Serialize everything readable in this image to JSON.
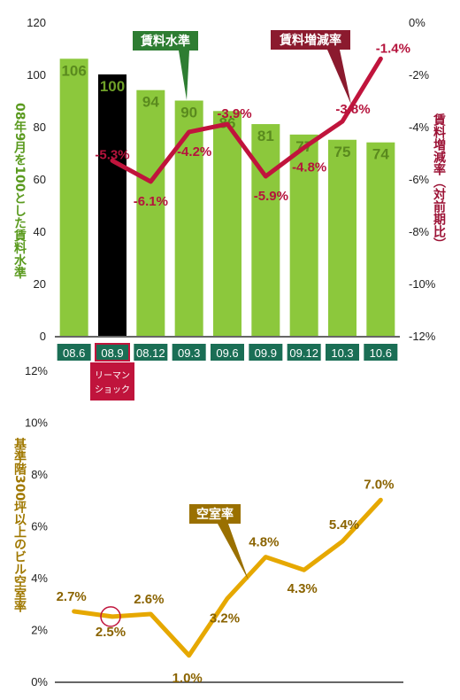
{
  "chart_data": [
    {
      "type": "bar+line",
      "categories": [
        "08.6",
        "08.9",
        "08.12",
        "09.3",
        "09.6",
        "09.9",
        "09.12",
        "10.3",
        "10.6"
      ],
      "series": [
        {
          "name": "賃料水準",
          "type": "bar",
          "axis": "left",
          "values": [
            106,
            100,
            94,
            90,
            86,
            81,
            77,
            75,
            74
          ]
        },
        {
          "name": "賃料増減率",
          "type": "line",
          "axis": "right",
          "values": [
            null,
            -5.3,
            -6.1,
            -4.2,
            -3.9,
            -5.9,
            -4.8,
            -3.8,
            -1.4
          ],
          "labels": [
            "",
            "-5.3%",
            "-6.1%",
            "-4.2%",
            "-3.9%",
            "-5.9%",
            "-4.8%",
            "-3.8%",
            "-1.4%"
          ]
        }
      ],
      "ylabel_left": "08年9月を100とした賃料水準",
      "ylabel_right": "賃料増減率（対前期比）",
      "ylim_left": [
        0,
        120
      ],
      "yticks_left": [
        "0",
        "20",
        "40",
        "60",
        "80",
        "100",
        "120"
      ],
      "ylim_right": [
        -12,
        0
      ],
      "yticks_right": [
        "-12%",
        "-10%",
        "-8%",
        "-6%",
        "-4%",
        "-2%",
        "0%"
      ],
      "highlight_category": "08.9",
      "highlight_note": "リーマンショック",
      "colors": {
        "bar": "#8cc83c",
        "bar_highlight": "#000000",
        "bar_label": "#5a8a1e",
        "line": "#c0143c",
        "category_bg": "#1a6e55"
      }
    },
    {
      "type": "line",
      "categories": [
        "08.6",
        "08.9",
        "08.12",
        "09.3",
        "09.6",
        "09.9",
        "09.12",
        "10.3",
        "10.6"
      ],
      "series": [
        {
          "name": "空室率",
          "values": [
            2.7,
            2.5,
            2.6,
            1.0,
            3.2,
            4.8,
            4.3,
            5.4,
            7.0
          ],
          "labels": [
            "2.7%",
            "2.5%",
            "2.6%",
            "1.0%",
            "3.2%",
            "4.8%",
            "4.3%",
            "5.4%",
            "7.0%"
          ]
        }
      ],
      "ylabel": "基準階300坪以上のビル空室率",
      "ylim": [
        0,
        12
      ],
      "yticks": [
        "0%",
        "2%",
        "4%",
        "6%",
        "8%",
        "10%",
        "12%"
      ],
      "highlight_category": "08.9",
      "colors": {
        "line": "#e6a800",
        "label": "#8a6300",
        "tag_bg": "#9a7000",
        "circle": "#c0143c"
      }
    }
  ]
}
